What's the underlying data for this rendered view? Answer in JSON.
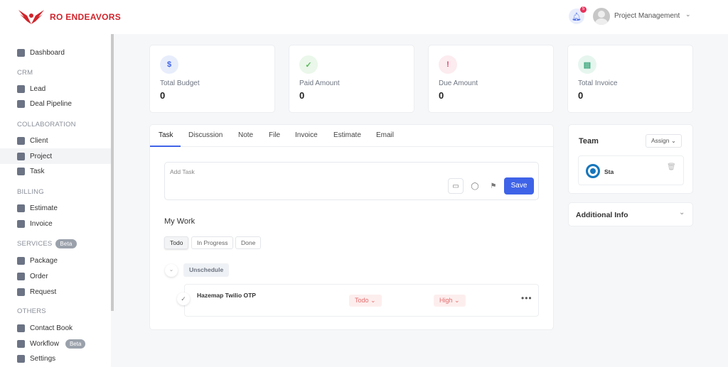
{
  "brand": {
    "name": "RO ENDEAVORS",
    "color": "#d0242b"
  },
  "header": {
    "notifications": "5",
    "user": "Project Management"
  },
  "sidebar": {
    "dashboard": "Dashboard",
    "sections": [
      {
        "title": "CRM",
        "items": [
          "Lead",
          "Deal Pipeline"
        ]
      },
      {
        "title": "COLLABORATION",
        "items": [
          "Client",
          "Project",
          "Task"
        ]
      },
      {
        "title": "BILLING",
        "items": [
          "Estimate",
          "Invoice"
        ]
      },
      {
        "title": "SERVICES",
        "badge": "Beta",
        "items": [
          "Package",
          "Order",
          "Request"
        ]
      },
      {
        "title": "OTHERS",
        "items": [
          "Contact Book",
          "Workflow",
          "Settings"
        ]
      }
    ],
    "workflow_badge": "Beta",
    "active": "Project"
  },
  "stats": [
    {
      "label": "Total Budget",
      "value": "0",
      "icon": "dollar-icon",
      "color": "#3f63e8",
      "bg": "#e8edfc"
    },
    {
      "label": "Paid Amount",
      "value": "0",
      "icon": "shield-check-icon",
      "color": "#5cb85c",
      "bg": "#eaf7ea"
    },
    {
      "label": "Due Amount",
      "value": "0",
      "icon": "shield-alert-icon",
      "color": "#d9456a",
      "bg": "#fcebef"
    },
    {
      "label": "Total Invoice",
      "value": "0",
      "icon": "invoice-icon",
      "color": "#3aa57a",
      "bg": "#e6f6ef"
    }
  ],
  "tabs": [
    "Task",
    "Discussion",
    "Note",
    "File",
    "Invoice",
    "Estimate",
    "Email"
  ],
  "add_task": {
    "placeholder": "Add Task",
    "save": "Save"
  },
  "my_work": {
    "title": "My Work",
    "filters": [
      "Todo",
      "In Progress",
      "Done"
    ],
    "group": "Unschedule",
    "tasks": [
      {
        "name": "Hazemap Twilio OTP",
        "status": "Todo",
        "priority": "High"
      }
    ]
  },
  "team": {
    "title": "Team",
    "assign": "Assign",
    "members": [
      "Sta"
    ]
  },
  "additional_info": "Additional Info"
}
